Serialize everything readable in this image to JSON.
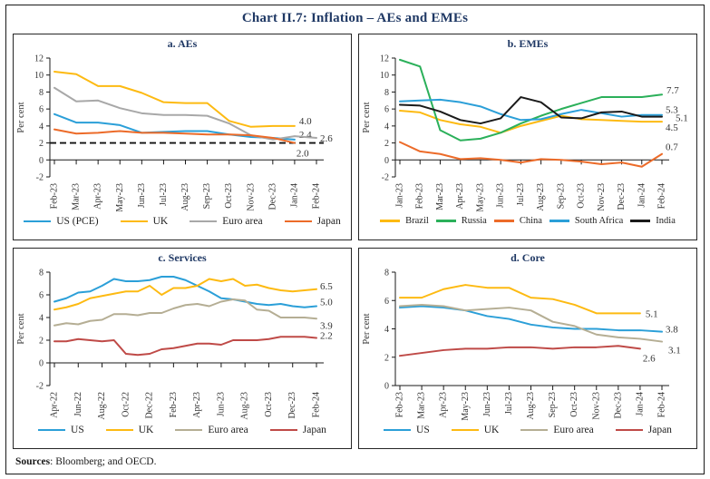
{
  "title": "Chart II.7: Inflation – AEs and EMEs",
  "footer": {
    "sources_label": "Sources",
    "sources_text": ": Bloomberg; and OECD."
  },
  "accent_colors": {
    "title_navy": "#1f3864",
    "blue": "#2b9fd8",
    "yellow": "#fdba12",
    "grey": "#a8a8a8",
    "orange": "#ec6b29",
    "green": "#2bb05a",
    "black": "#1a1a1a",
    "tan": "#b5ae94",
    "dark_red": "#bf4a47"
  },
  "chart_data": [
    {
      "id": "aes",
      "type": "line",
      "title": "a. AEs",
      "ylabel": "Per cent",
      "ylim": [
        -2,
        12
      ],
      "ytick_step": 2,
      "x_label_every": 1,
      "grid": false,
      "legend_position": "bottom",
      "ref_line_y": 2,
      "categories": [
        "Feb-23",
        "Mar-23",
        "Apr-23",
        "May-23",
        "Jun-23",
        "Jul-23",
        "Aug-23",
        "Sep-23",
        "Oct-23",
        "Nov-23",
        "Dec-23",
        "Jan-24",
        "Feb-24"
      ],
      "series": [
        {
          "name": "US (PCE)",
          "color": "#2b9fd8",
          "values": [
            5.4,
            4.4,
            4.4,
            4.1,
            3.2,
            3.3,
            3.4,
            3.4,
            3.0,
            2.7,
            2.6,
            2.4,
            null
          ],
          "end_label": "2.4",
          "label_dx": 5,
          "label_dy": -5
        },
        {
          "name": "UK",
          "color": "#fdba12",
          "values": [
            10.4,
            10.1,
            8.7,
            8.7,
            7.9,
            6.8,
            6.7,
            6.7,
            4.6,
            3.9,
            4.0,
            4.0,
            null
          ],
          "end_label": "4.0",
          "label_dx": 5,
          "label_dy": -5
        },
        {
          "name": "Euro area",
          "color": "#a8a8a8",
          "values": [
            8.5,
            6.9,
            7.0,
            6.1,
            5.5,
            5.3,
            5.3,
            5.2,
            4.3,
            2.9,
            2.4,
            2.8,
            2.6
          ],
          "end_label": "2.6",
          "label_dx": 4,
          "label_dy": 1
        },
        {
          "name": "Japan",
          "color": "#ec6b29",
          "values": [
            3.6,
            3.1,
            3.2,
            3.4,
            3.2,
            3.2,
            3.1,
            3.0,
            3.0,
            2.9,
            2.6,
            2.0,
            null
          ],
          "end_label": "2.0",
          "label_dx": 2,
          "label_dy": 12
        }
      ]
    },
    {
      "id": "emes",
      "type": "line",
      "title": "b. EMEs",
      "ylabel": "Per cent",
      "ylim": [
        -2,
        12
      ],
      "ytick_step": 2,
      "x_label_every": 1,
      "grid": false,
      "legend_position": "bottom",
      "ref_line_y": null,
      "categories": [
        "Jan-23",
        "Feb-23",
        "Mar-23",
        "Apr-23",
        "May-23",
        "Jun-23",
        "Jul-23",
        "Aug-23",
        "Sep-23",
        "Oct-23",
        "Nov-23",
        "Dec-23",
        "Jan-24",
        "Feb-24"
      ],
      "series": [
        {
          "name": "Brazil",
          "color": "#fdba12",
          "values": [
            5.8,
            5.6,
            4.7,
            4.2,
            3.9,
            3.2,
            4.0,
            4.6,
            5.2,
            4.8,
            4.7,
            4.6,
            4.5,
            4.5
          ],
          "end_label": "4.5",
          "label_dx": 4,
          "label_dy": 7
        },
        {
          "name": "Russia",
          "color": "#2bb05a",
          "values": [
            11.8,
            11.0,
            3.5,
            2.3,
            2.5,
            3.2,
            4.3,
            5.2,
            6.0,
            6.7,
            7.4,
            7.4,
            7.4,
            7.7
          ],
          "end_label": "7.7",
          "label_dx": 5,
          "label_dy": -4
        },
        {
          "name": "China",
          "color": "#ec6b29",
          "values": [
            2.1,
            1.0,
            0.7,
            0.1,
            0.2,
            0.0,
            -0.3,
            0.1,
            0.0,
            -0.2,
            -0.5,
            -0.3,
            -0.8,
            0.7
          ],
          "end_label": "0.7",
          "label_dx": 0,
          "label_dy": -7
        },
        {
          "name": "South Africa",
          "color": "#2b9fd8",
          "values": [
            6.9,
            7.0,
            7.1,
            6.8,
            6.3,
            5.4,
            4.7,
            4.8,
            5.4,
            5.9,
            5.5,
            5.1,
            5.3,
            5.3
          ],
          "end_label": "5.3",
          "label_dx": 4,
          "label_dy": -5
        },
        {
          "name": "India",
          "color": "#1a1a1a",
          "values": [
            6.5,
            6.4,
            5.7,
            4.7,
            4.3,
            4.9,
            7.4,
            6.8,
            5.0,
            4.9,
            5.6,
            5.7,
            5.1,
            5.1
          ],
          "end_label": "5.1",
          "label_dx": 15,
          "label_dy": 2
        }
      ]
    },
    {
      "id": "services",
      "type": "line",
      "title": "c. Services",
      "ylabel": "Per cent",
      "ylim": [
        -2,
        8
      ],
      "ytick_step": 2,
      "x_label_every": 2,
      "grid": false,
      "legend_position": "bottom",
      "ref_line_y": null,
      "categories": [
        "Apr-22",
        "May-22",
        "Jun-22",
        "Jul-22",
        "Aug-22",
        "Sep-22",
        "Oct-22",
        "Nov-22",
        "Dec-22",
        "Jan-23",
        "Feb-23",
        "Mar-23",
        "Apr-23",
        "May-23",
        "Jun-23",
        "Jul-23",
        "Aug-23",
        "Sep-23",
        "Oct-23",
        "Nov-23",
        "Dec-23",
        "Jan-24",
        "Feb-24"
      ],
      "series": [
        {
          "name": "US",
          "color": "#2b9fd8",
          "values": [
            5.4,
            5.7,
            6.2,
            6.3,
            6.8,
            7.4,
            7.2,
            7.2,
            7.3,
            7.6,
            7.6,
            7.3,
            6.8,
            6.3,
            5.7,
            5.6,
            5.4,
            5.2,
            5.1,
            5.2,
            5.0,
            4.9,
            5.0
          ],
          "end_label": "5.0",
          "label_dx": 4,
          "label_dy": -4
        },
        {
          "name": "UK",
          "color": "#fdba12",
          "values": [
            4.7,
            4.9,
            5.2,
            5.7,
            5.9,
            6.1,
            6.3,
            6.3,
            6.8,
            6.0,
            6.6,
            6.6,
            6.8,
            7.4,
            7.2,
            7.4,
            6.8,
            6.9,
            6.6,
            6.4,
            6.3,
            6.4,
            6.5
          ],
          "end_label": "6.5",
          "label_dx": 4,
          "label_dy": -3
        },
        {
          "name": "Euro area",
          "color": "#b5ae94",
          "values": [
            3.3,
            3.5,
            3.4,
            3.7,
            3.8,
            4.3,
            4.3,
            4.2,
            4.4,
            4.4,
            4.8,
            5.1,
            5.2,
            5.0,
            5.4,
            5.6,
            5.5,
            4.7,
            4.6,
            4.0,
            4.0,
            4.0,
            3.9
          ],
          "end_label": "3.9",
          "label_dx": 4,
          "label_dy": 8
        },
        {
          "name": "Japan",
          "color": "#bf4a47",
          "values": [
            1.9,
            1.9,
            2.1,
            2.0,
            1.9,
            2.0,
            0.8,
            0.7,
            0.8,
            1.2,
            1.3,
            1.5,
            1.7,
            1.7,
            1.6,
            2.0,
            2.0,
            2.0,
            2.1,
            2.3,
            2.3,
            2.3,
            2.2
          ],
          "end_label": "2.2",
          "label_dx": 4,
          "label_dy": -2
        }
      ]
    },
    {
      "id": "core",
      "type": "line",
      "title": "d. Core",
      "ylabel": "Per cent",
      "ylim": [
        0,
        8
      ],
      "ytick_step": 2,
      "x_label_every": 1,
      "grid": false,
      "legend_position": "bottom",
      "ref_line_y": null,
      "categories": [
        "Feb-23",
        "Mar-23",
        "Apr-23",
        "May-23",
        "Jun-23",
        "Jul-23",
        "Aug-23",
        "Sep-23",
        "Oct-23",
        "Nov-23",
        "Dec-23",
        "Jan-24",
        "Feb-24"
      ],
      "series": [
        {
          "name": "US",
          "color": "#2b9fd8",
          "values": [
            5.5,
            5.6,
            5.5,
            5.3,
            4.9,
            4.7,
            4.3,
            4.1,
            4.0,
            4.0,
            3.9,
            3.9,
            3.8
          ],
          "end_label": "3.8",
          "label_dx": 4,
          "label_dy": -2
        },
        {
          "name": "UK",
          "color": "#fdba12",
          "values": [
            6.2,
            6.2,
            6.8,
            7.1,
            6.9,
            6.9,
            6.2,
            6.1,
            5.7,
            5.1,
            5.1,
            5.1,
            null
          ],
          "end_label": "5.1",
          "label_dx": 6,
          "label_dy": 1
        },
        {
          "name": "Euro area",
          "color": "#b5ae94",
          "values": [
            5.6,
            5.7,
            5.6,
            5.3,
            5.4,
            5.5,
            5.3,
            4.5,
            4.2,
            3.6,
            3.4,
            3.3,
            3.1
          ],
          "end_label": "3.1",
          "label_dx": 7,
          "label_dy": 10
        },
        {
          "name": "Japan",
          "color": "#bf4a47",
          "values": [
            2.1,
            2.3,
            2.5,
            2.6,
            2.6,
            2.7,
            2.7,
            2.6,
            2.7,
            2.7,
            2.8,
            2.6,
            null
          ],
          "end_label": "2.6",
          "label_dx": 3,
          "label_dy": 11
        }
      ]
    }
  ]
}
